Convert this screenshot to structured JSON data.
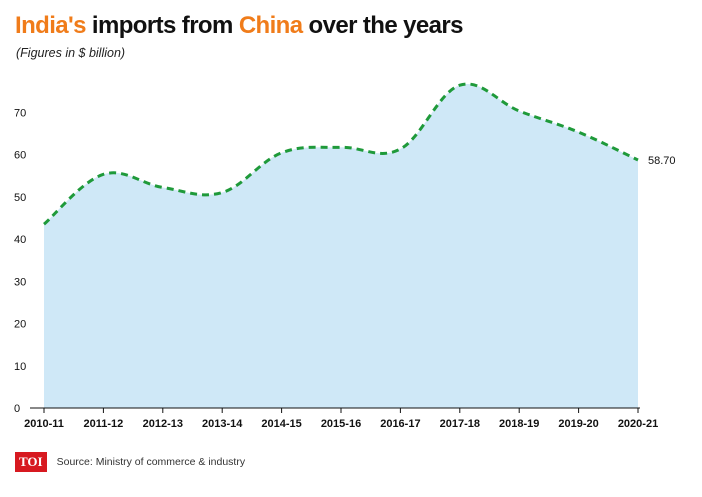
{
  "header": {
    "title_part1": "India's",
    "title_part2": " imports from ",
    "title_part3": "China",
    "title_part4": " over the years",
    "subtitle": "(Figures in $ billion)"
  },
  "footer": {
    "logo_text": "TOI",
    "source": "Source: Ministry of commerce & industry"
  },
  "colors": {
    "accent": "#f07c1a",
    "line": "#1f9a3a",
    "fill": "#cfe8f7",
    "logo_bg": "#d71920"
  },
  "chart_data": {
    "type": "area",
    "categories": [
      "2010-11",
      "2011-12",
      "2012-13",
      "2013-14",
      "2014-15",
      "2015-16",
      "2016-17",
      "2017-18",
      "2018-19",
      "2019-20",
      "2020-21"
    ],
    "series": [
      {
        "values": [
          43.5,
          55.3,
          52.2,
          51.0,
          60.4,
          61.7,
          61.3,
          76.4,
          70.3,
          65.3,
          58.7
        ]
      }
    ],
    "end_label": "58.70",
    "ylim": [
      0,
      80
    ],
    "yticks": [
      0,
      10,
      20,
      30,
      40,
      50,
      60,
      70
    ],
    "line_style": "dashed",
    "grid": false,
    "legend": "none"
  }
}
